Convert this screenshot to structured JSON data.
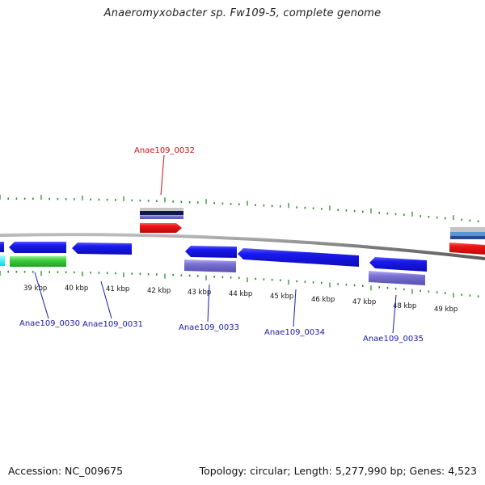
{
  "title": "Anaeromyxobacter sp. Fw109-5, complete genome",
  "footer": {
    "accession": "Accession: NC_009675",
    "summary": "Topology: circular; Length: 5,277,990 bp; Genes: 4,523"
  },
  "scale_labels": [
    "39 kbp",
    "40 kbp",
    "41 kbp",
    "42 kbp",
    "43 kbp",
    "44 kbp",
    "45 kbp",
    "46 kbp",
    "47 kbp",
    "48 kbp",
    "49 kbp"
  ],
  "gene_labels": [
    {
      "text": "Anae109_0030",
      "color": "#1a1aa8"
    },
    {
      "text": "Anae109_0031",
      "color": "#1a1aa8"
    },
    {
      "text": "Anae109_0032",
      "color": "#cc1111"
    },
    {
      "text": "Anae109_0033",
      "color": "#1a1aa8"
    },
    {
      "text": "Anae109_0034",
      "color": "#1a1aa8"
    },
    {
      "text": "Anae109_0035",
      "color": "#1a1aa8"
    }
  ],
  "colors": {
    "backbone": "#8a8a8a",
    "tick": "#2b8a2b",
    "gene_blue": "#1616e0",
    "gene_red": "#ee1111",
    "gene_green": "#33cc33",
    "gene_cyan": "#00e0f0",
    "gene_lavender": "#7a72d0",
    "gene_navy": "#101850",
    "gene_grey": "#c4c4c4",
    "gene_steel": "#4a8ad0",
    "label_line_blue": "#1a1aa8",
    "label_line_red": "#cc1111"
  }
}
